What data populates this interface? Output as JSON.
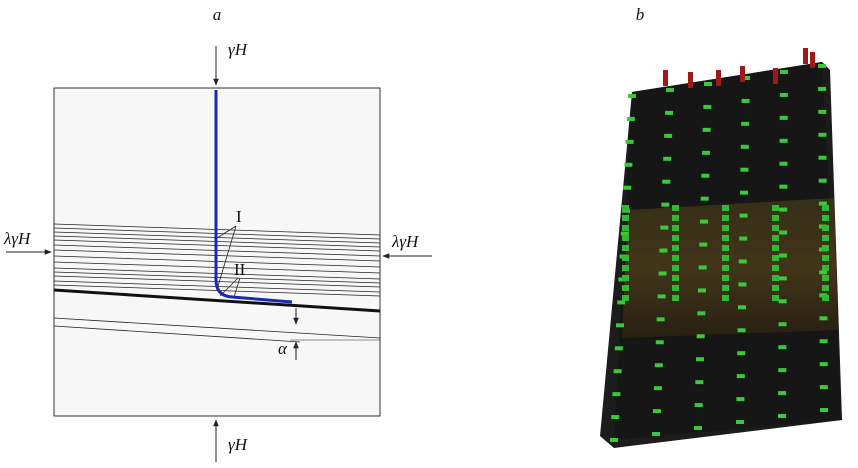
{
  "panel_a": {
    "label": "a",
    "load_top": "γH",
    "load_bottom": "γH",
    "load_left": "λγH",
    "load_right": "λγH",
    "marker_1": "I",
    "marker_2": "II",
    "angle": "α"
  },
  "panel_b": {
    "label": "b"
  }
}
